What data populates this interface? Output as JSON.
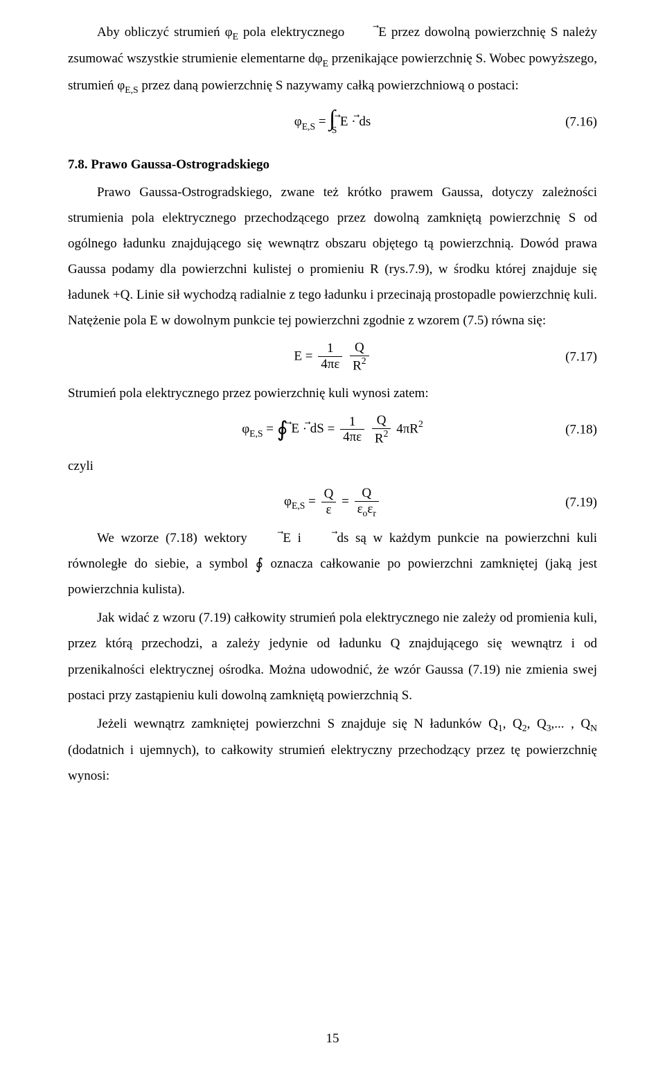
{
  "p1_prefix": "Aby obliczyć strumień ",
  "p1_phiE": "φ",
  "p1_phiE_sub": "E",
  "p1_mid1": " pola elektrycznego ",
  "p1_Evec": "E",
  "p1_mid2": " przez dowolną powierzchnię S należy zsumować wszystkie strumienie elementarne ",
  "p1_dphi": "dφ",
  "p1_dphi_sub": "E",
  "p1_mid3": " przenikające powierzchnię S. Wobec powyższego, strumień ",
  "p1_phiES": "φ",
  "p1_phiES_sub": "E,S",
  "p1_tail": " przez daną powierzchnię S nazywamy całką powierzchniową o postaci:",
  "eq16_lhs_sym": "φ",
  "eq16_lhs_sub": "E,S",
  "eq16_eqsign": " = ",
  "eq16_int_low": "S",
  "eq16_Evec": "E",
  "eq16_dot": " · ",
  "eq16_ds": "ds",
  "eq16_num": "(7.16)",
  "sec_title": "7.8. Prawo Gaussa-Ostrogradskiego",
  "p2": "Prawo Gaussa-Ostrogradskiego, zwane też krótko prawem Gaussa, dotyczy zależności strumienia pola elektrycznego przechodzącego przez dowolną zamkniętą powierzchnię S od ogólnego ładunku znajdującego się wewnątrz obszaru objętego tą powierzchnią. Dowód prawa Gaussa podamy dla powierzchni kulistej o promieniu R (rys.7.9), w środku której znajduje się ładunek +Q. Linie sił wychodzą radialnie z tego ładunku i przecinają prostopadle powierzchnię kuli. Natężenie pola E w dowolnym punkcie tej powierzchni zgodnie z wzorem (7.5) równa się:",
  "eq17_E": "E =",
  "eq17_num1_top": "1",
  "eq17_num1_bot": "4πε",
  "eq17_num2_top": "Q",
  "eq17_num2_bot": "R",
  "eq17_num2_exp": "2",
  "eq17_num": "(7.17)",
  "p3": "Strumień pola elektrycznego przez powierzchnię kuli wynosi zatem:",
  "eq18_lhs_sym": "φ",
  "eq18_lhs_sub": "E,S",
  "eq18_eqsign": " = ",
  "eq18_Evec": "E",
  "eq18_dot": " · ",
  "eq18_dS": "dS",
  "eq18_eq2": " = ",
  "eq18_f1_top": "1",
  "eq18_f1_bot": "4πε",
  "eq18_f2_top": "Q",
  "eq18_f2_bot": "R",
  "eq18_f2_exp": "2",
  "eq18_tail": " 4πR",
  "eq18_tail_exp": "2",
  "eq18_num": "(7.18)",
  "p_czyli": "czyli",
  "eq19_lhs_sym": "φ",
  "eq19_lhs_sub": "E,S",
  "eq19_eqsign": " = ",
  "eq19_f1_top": "Q",
  "eq19_f1_bot": "ε",
  "eq19_mid": " = ",
  "eq19_f2_top": "Q",
  "eq19_f2_bot_a": "ε",
  "eq19_f2_bot_asub": "o",
  "eq19_f2_bot_b": "ε",
  "eq19_f2_bot_bsub": "r",
  "eq19_num": "(7.19)",
  "p4_pre": "We wzorze (7.18) wektory ",
  "p4_Evec": "E",
  "p4_mid1": " i ",
  "p4_ds": "ds",
  "p4_mid2": " są w każdym punkcie na powierzchni kuli równoległe do siebie, a symbol ",
  "p4_oint": "∮",
  "p4_tail": " oznacza całkowanie po powierzchni zamkniętej (jaką jest powierzchnia kulista).",
  "p5": "Jak widać z wzoru (7.19) całkowity strumień pola elektrycznego nie zależy od promienia kuli, przez którą przechodzi, a zależy  jedynie od ładunku Q znajdującego się wewnątrz i od przenikalności elektrycznej ośrodka. Można udowodnić, że wzór Gaussa (7.19) nie zmienia swej postaci przy zastąpieniu kuli dowolną zamkniętą powierzchnią S.",
  "p6_pre": "Jeżeli wewnątrz zamkniętej powierzchni S znajduje się N ładunków ",
  "p6_q1": "Q",
  "p6_q1s": "1",
  "p6_c1": ", ",
  "p6_q2": "Q",
  "p6_q2s": "2",
  "p6_c2": ", ",
  "p6_q3": "Q",
  "p6_q3s": "3",
  "p6_c3": ",... , ",
  "p6_qn": "Q",
  "p6_qns": "N",
  "p6_tail": " (dodatnich i ujemnych), to całkowity strumień elektryczny przechodzący przez tę powierzchnię wynosi:",
  "page_number": "15"
}
